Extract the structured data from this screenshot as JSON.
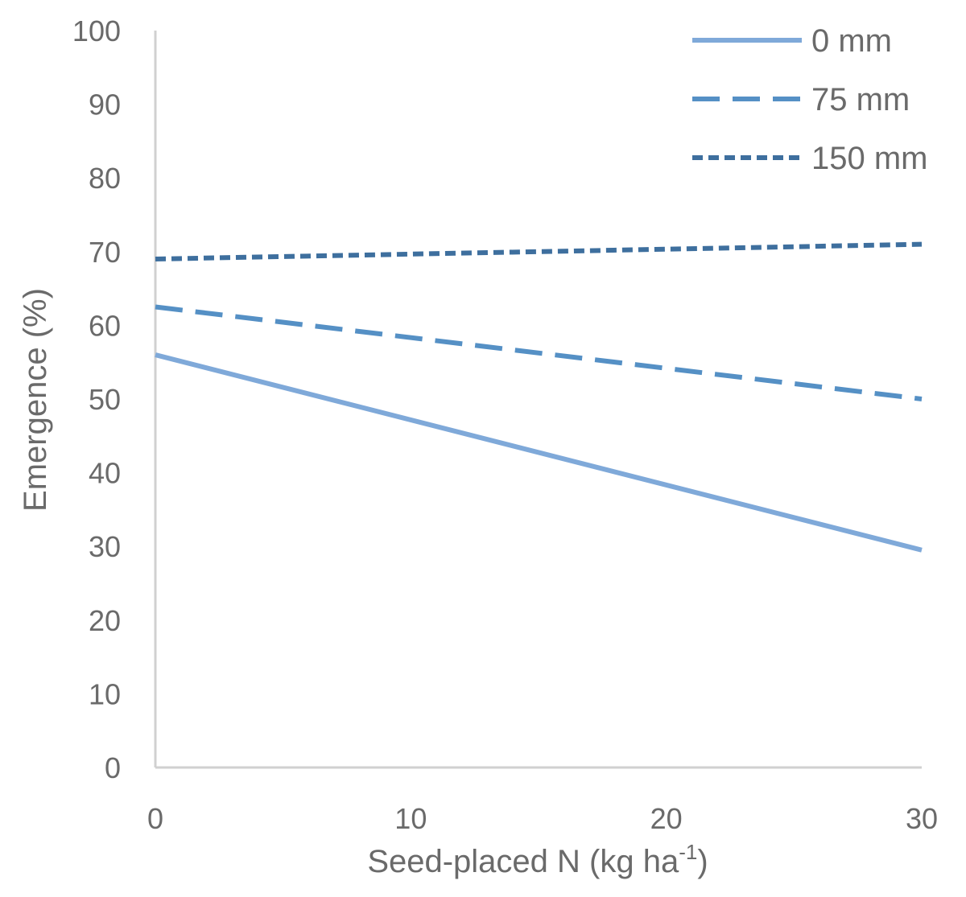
{
  "chart_data": {
    "type": "line",
    "title": "",
    "xlabel": "Seed-placed N (kg ha",
    "xlabel_superscript": "-1",
    "xlabel_suffix": ")",
    "ylabel": "Emergence (%)",
    "xlim": [
      0,
      30
    ],
    "ylim": [
      0,
      100
    ],
    "x_ticks": [
      0,
      10,
      20,
      30
    ],
    "y_ticks": [
      0,
      10,
      20,
      30,
      40,
      50,
      60,
      70,
      80,
      90,
      100
    ],
    "grid": false,
    "legend_position": "top-right",
    "x": [
      0,
      30
    ],
    "series": [
      {
        "name": "0 mm",
        "values": [
          56,
          29.5
        ],
        "color": "#7fa9d9",
        "dash": "solid"
      },
      {
        "name": "75 mm",
        "values": [
          62.5,
          50
        ],
        "color": "#5590c5",
        "dash": "long-dash"
      },
      {
        "name": "150 mm",
        "values": [
          69,
          71
        ],
        "color": "#3e6f9e",
        "dash": "short-dash"
      }
    ]
  }
}
